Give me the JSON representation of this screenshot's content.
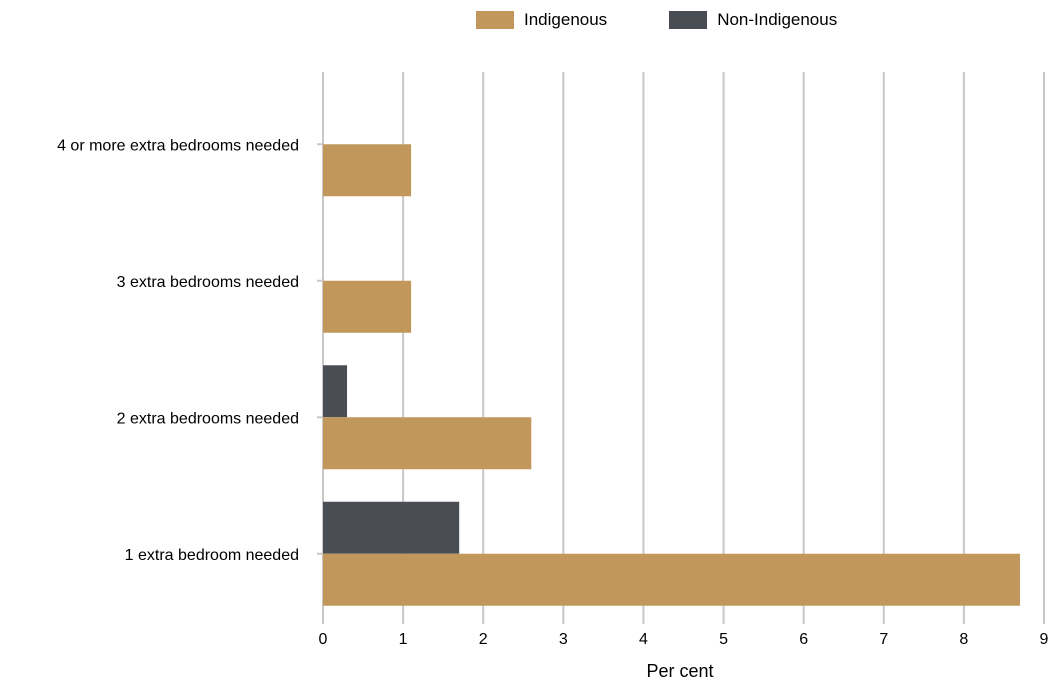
{
  "chart_data": {
    "type": "bar",
    "orientation": "horizontal",
    "categories": [
      "4 or more extra bedrooms needed",
      "3 extra bedrooms needed",
      "2 extra bedrooms needed",
      "1 extra bedroom needed"
    ],
    "series": [
      {
        "name": "Indigenous",
        "color": "#c1975b",
        "values": [
          1.1,
          1.1,
          2.6,
          8.7
        ]
      },
      {
        "name": "Non-Indigenous",
        "color": "#4a4e54",
        "values": [
          0,
          0,
          0.3,
          1.7
        ]
      }
    ],
    "xlabel": "Per cent",
    "xlim": [
      0,
      9
    ],
    "xticks": [
      "0",
      "1",
      "2",
      "3",
      "4",
      "5",
      "6",
      "7",
      "8",
      "9"
    ],
    "grid": true,
    "legend_position": "top"
  }
}
